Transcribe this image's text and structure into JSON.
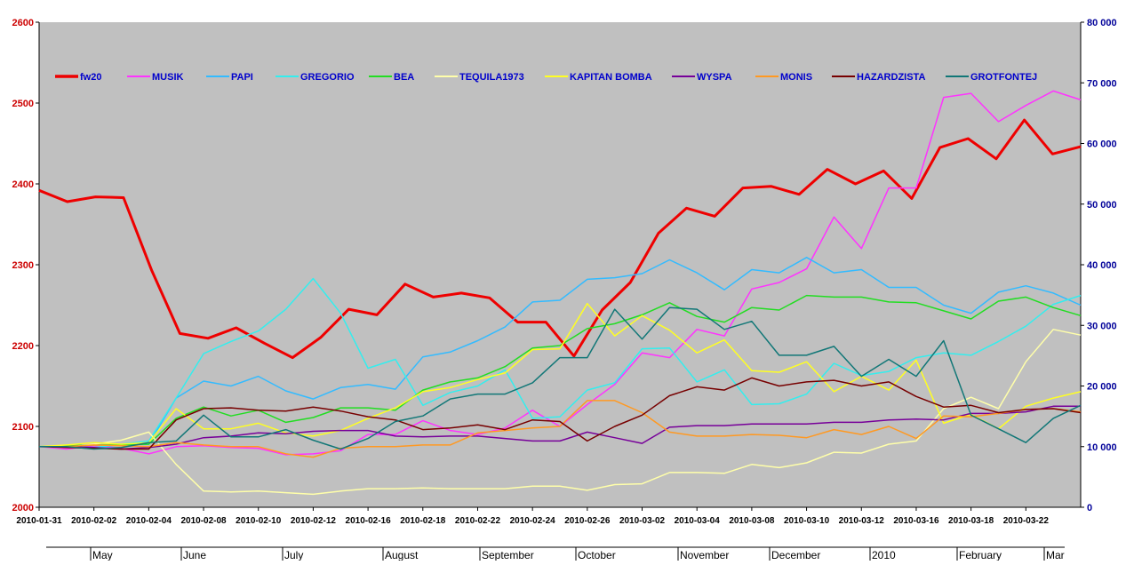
{
  "chart_data": {
    "type": "line",
    "title": "",
    "xlabel": "",
    "ylabel": "",
    "plot_background": "#c0c0c0",
    "grid": false,
    "legend_position": "top",
    "y_left": {
      "min": 2000,
      "max": 2600,
      "ticks": [
        "2000",
        "2100",
        "2200",
        "2300",
        "2400",
        "2500",
        "2600"
      ]
    },
    "y_right": {
      "min": 0,
      "max": 80000,
      "ticks": [
        "0",
        "10 000",
        "20 000",
        "30 000",
        "40 000",
        "50 000",
        "60 000",
        "70 000",
        "80 000"
      ]
    },
    "x_tick_labels": [
      "2010-01-31",
      "2010-02-02",
      "2010-02-04",
      "2010-02-08",
      "2010-02-10",
      "2010-02-12",
      "2010-02-16",
      "2010-02-18",
      "2010-02-22",
      "2010-02-24",
      "2010-02-26",
      "2010-03-02",
      "2010-03-04",
      "2010-03-08",
      "2010-03-10",
      "2010-03-12",
      "2010-03-16",
      "2010-03-18",
      "2010-03-22"
    ],
    "secondary_x_labels": [
      "May",
      "June",
      "July",
      "August",
      "September",
      "October",
      "November",
      "December",
      "2010",
      "February",
      "Mar"
    ],
    "series": [
      {
        "name": "fw20",
        "color": "#ee0000",
        "width": 3,
        "values": [
          2392,
          2378,
          2384,
          2383,
          2293,
          2215,
          2209,
          2222,
          2203,
          2185,
          2210,
          2245,
          2238,
          2276,
          2260,
          2265,
          2259,
          2229,
          2229,
          2187,
          2244,
          2278,
          2339,
          2370,
          2360,
          2395,
          2397,
          2387,
          2418,
          2400,
          2416,
          2382,
          2445,
          2456,
          2431,
          2479,
          2437,
          2446
        ]
      },
      {
        "name": "MUSIK",
        "color": "#ff33ff",
        "width": 1.5,
        "values": [
          2075,
          2072,
          2076,
          2073,
          2066,
          2075,
          2076,
          2074,
          2073,
          2065,
          2066,
          2070,
          2090,
          2090,
          2107,
          2095,
          2090,
          2098,
          2120,
          2100,
          2127,
          2152,
          2191,
          2185,
          2220,
          2212,
          2270,
          2278,
          2295,
          2359,
          2320,
          2395,
          2395,
          2507,
          2512,
          2477,
          2497,
          2515,
          2504
        ]
      },
      {
        "name": "PAPI",
        "color": "#33bbff",
        "width": 1.5,
        "values": [
          2075,
          2076,
          2074,
          2077,
          2078,
          2135,
          2156,
          2150,
          2162,
          2144,
          2134,
          2148,
          2152,
          2146,
          2186,
          2192,
          2206,
          2223,
          2254,
          2256,
          2282,
          2284,
          2289,
          2306,
          2290,
          2269,
          2294,
          2290,
          2309,
          2290,
          2294,
          2272,
          2272,
          2250,
          2240,
          2266,
          2274,
          2265,
          2250
        ]
      },
      {
        "name": "GREGORIO",
        "color": "#33eeee",
        "width": 1.5,
        "values": [
          2075,
          2074,
          2074,
          2078,
          2082,
          2135,
          2190,
          2205,
          2218,
          2245,
          2283,
          2240,
          2172,
          2183,
          2126,
          2142,
          2150,
          2170,
          2110,
          2112,
          2145,
          2154,
          2196,
          2197,
          2155,
          2170,
          2127,
          2128,
          2140,
          2178,
          2163,
          2168,
          2185,
          2191,
          2188,
          2205,
          2224,
          2251,
          2262
        ]
      },
      {
        "name": "BEA",
        "color": "#22dd22",
        "width": 1.5,
        "values": [
          2075,
          2076,
          2077,
          2077,
          2078,
          2110,
          2124,
          2113,
          2120,
          2105,
          2111,
          2123,
          2123,
          2120,
          2145,
          2155,
          2160,
          2174,
          2197,
          2200,
          2221,
          2227,
          2238,
          2253,
          2236,
          2229,
          2247,
          2244,
          2262,
          2260,
          2260,
          2254,
          2253,
          2243,
          2233,
          2255,
          2260,
          2247,
          2237
        ]
      },
      {
        "name": "TEQUILA1973",
        "color": "#ffffaa",
        "width": 1.5,
        "values": [
          2075,
          2074,
          2078,
          2083,
          2093,
          2053,
          2020,
          2019,
          2020,
          2018,
          2016,
          2020,
          2023,
          2023,
          2024,
          2023,
          2023,
          2023,
          2026,
          2026,
          2021,
          2028,
          2029,
          2043,
          2043,
          2042,
          2053,
          2049,
          2055,
          2068,
          2067,
          2078,
          2082,
          2122,
          2136,
          2122,
          2180,
          2220,
          2213
        ]
      },
      {
        "name": "KAPITAN BOMBA",
        "color": "#ffff22",
        "width": 1.5,
        "values": [
          2075,
          2077,
          2080,
          2078,
          2080,
          2122,
          2097,
          2097,
          2104,
          2092,
          2088,
          2095,
          2110,
          2123,
          2143,
          2148,
          2158,
          2166,
          2195,
          2196,
          2252,
          2212,
          2237,
          2219,
          2191,
          2207,
          2169,
          2167,
          2180,
          2143,
          2162,
          2145,
          2182,
          2104,
          2115,
          2097,
          2125,
          2135,
          2143
        ]
      },
      {
        "name": "WYSPA",
        "color": "#770099",
        "width": 1.5,
        "values": [
          2075,
          2075,
          2074,
          2072,
          2074,
          2078,
          2086,
          2088,
          2092,
          2091,
          2094,
          2095,
          2095,
          2088,
          2087,
          2088,
          2088,
          2085,
          2082,
          2082,
          2093,
          2086,
          2079,
          2099,
          2101,
          2101,
          2103,
          2103,
          2103,
          2105,
          2105,
          2108,
          2109,
          2108,
          2116,
          2116,
          2118,
          2125,
          2125
        ]
      },
      {
        "name": "MONIS",
        "color": "#ff9922",
        "width": 1.5,
        "values": [
          2075,
          2075,
          2077,
          2076,
          2075,
          2080,
          2077,
          2075,
          2075,
          2066,
          2062,
          2073,
          2075,
          2075,
          2077,
          2077,
          2092,
          2095,
          2098,
          2100,
          2132,
          2132,
          2117,
          2093,
          2088,
          2088,
          2090,
          2089,
          2086,
          2096,
          2090,
          2100,
          2085,
          2113,
          2112,
          2116,
          2121,
          2122,
          2118
        ]
      },
      {
        "name": "HAZARDZISTA",
        "color": "#770000",
        "width": 1.5,
        "values": [
          2075,
          2074,
          2073,
          2072,
          2072,
          2108,
          2122,
          2123,
          2120,
          2119,
          2124,
          2119,
          2112,
          2108,
          2096,
          2098,
          2102,
          2096,
          2108,
          2106,
          2082,
          2100,
          2114,
          2138,
          2149,
          2145,
          2160,
          2150,
          2155,
          2157,
          2150,
          2155,
          2137,
          2124,
          2126,
          2117,
          2121,
          2122,
          2117
        ]
      },
      {
        "name": "GROTFONTEJ",
        "color": "#117777",
        "width": 1.5,
        "values": [
          2075,
          2075,
          2072,
          2074,
          2080,
          2082,
          2114,
          2087,
          2087,
          2096,
          2083,
          2072,
          2085,
          2106,
          2113,
          2134,
          2140,
          2140,
          2154,
          2185,
          2185,
          2245,
          2208,
          2247,
          2245,
          2220,
          2230,
          2188,
          2188,
          2199,
          2162,
          2183,
          2162,
          2206,
          2114,
          2097,
          2080,
          2110,
          2126
        ]
      }
    ]
  }
}
